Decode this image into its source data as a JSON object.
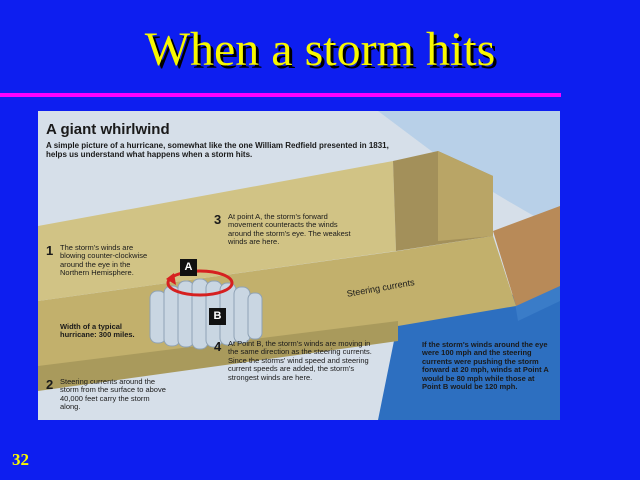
{
  "slide": {
    "title": "When a storm hits",
    "number": "32"
  },
  "figure": {
    "heading": "A giant whirlwind",
    "intro": "A simple picture of a hurricane, somewhat like the one William Redfield presented in 1831, helps us understand what happens when a storm hits.",
    "steps": [
      {
        "num": "1",
        "text": "The storm's winds are blowing counter-clockwise around the eye in the Northern Hemisphere."
      },
      {
        "num": "2",
        "text": "Steering currents around the storm from the surface to above 40,000 feet carry the storm along."
      },
      {
        "num": "3",
        "text": "At point A, the storm's forward movement counteracts the winds around the storm's eye. The weakest winds are here."
      },
      {
        "num": "4",
        "text": "At Point B, the storm's winds are moving in the same direction as the steering currents. Since the storms' wind speed and steering current speeds are added, the storm's strongest winds are here."
      }
    ],
    "width_label": "Width of a typical hurricane: 300 miles.",
    "steering_label": "Steering currents",
    "point_a": "A",
    "point_b": "B",
    "note": "If the storm's winds around the eye were 100 mph and the steering currents were pushing the storm forward at 20 mph, winds at Point A would be 80 mph while those at Point B would be 120 mph."
  },
  "colors": {
    "background": "#0d1ef0",
    "title": "#f8f800",
    "rule": "#ff00ff",
    "sea": "#2d6fc0",
    "channel": "#c9bd7d",
    "cloud": "#b8d0e8"
  }
}
